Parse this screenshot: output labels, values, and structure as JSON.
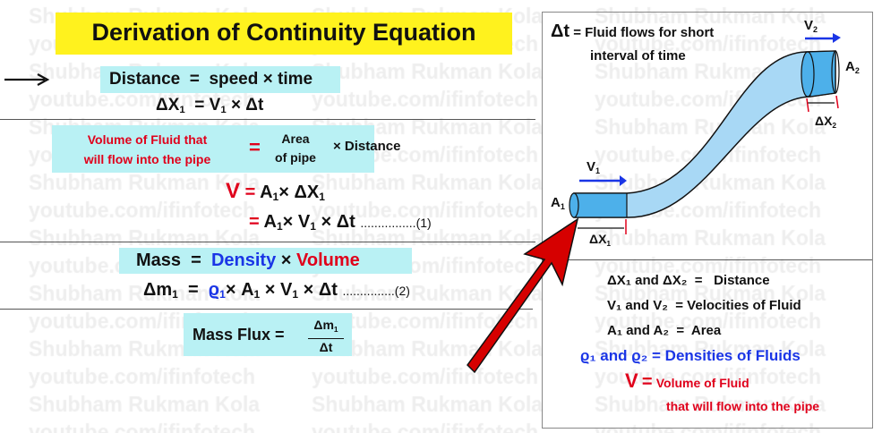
{
  "title": "Derivation of Continuity Equation",
  "watermark": {
    "line1": "Shubham Rukman Kola",
    "line2": "youtube.com/ifinfotech"
  },
  "distance_box": {
    "label": "Distance",
    "eq": "=",
    "rhs": "speed × time"
  },
  "dx_eq": {
    "lhs": "ΔX",
    "sub": "1",
    "rhs": "= V",
    "rhs_sub": "1",
    "tail": "× Δt"
  },
  "volume_box": {
    "lhs_line1": "Volume of Fluid that",
    "lhs_line2": "will flow into the pipe",
    "eq": "=",
    "area_line1": "Area",
    "area_line2": "of pipe",
    "times": "× Distance"
  },
  "v_eq1": {
    "v": "V",
    "eq": "=",
    "a": "A",
    "a_sub": "1",
    "rest": "× ΔX",
    "rest_sub": "1"
  },
  "v_eq2": {
    "eq": "=",
    "a": "A",
    "a_sub": "1",
    "mid": "× V",
    "mid_sub": "1",
    "tail": "× Δt",
    "ref": "................(1)"
  },
  "mass_box": {
    "label": "Mass",
    "eq": "=",
    "density": "Density",
    "times": "×",
    "volume": "Volume"
  },
  "dm_eq": {
    "lhs": "Δm",
    "lhs_sub": "1",
    "eq": "=",
    "rho": "ϱ",
    "rho_sub": "1",
    "a": "× A",
    "a_sub": "1",
    "v": "× V",
    "v_sub": "1",
    "tail": "× Δt",
    "ref": "...............(2)"
  },
  "flux_box": {
    "label": "Mass Flux =",
    "num": "Δm",
    "num_sub": "1",
    "den": "Δt"
  },
  "panel": {
    "dt_label": "Δt",
    "dt_def_line1": "= Fluid flows for short",
    "dt_def_line2": "interval of time",
    "v1": "V",
    "v1_sub": "1",
    "v2": "V",
    "v2_sub": "2",
    "a1": "A",
    "a1_sub": "1",
    "a2": "A",
    "a2_sub": "2",
    "dx1": "ΔX",
    "dx1_sub": "1",
    "dx2": "ΔX",
    "dx2_sub": "2",
    "legend": [
      {
        "lhs": "ΔX₁ and ΔX₂",
        "eq": "=",
        "rhs": "Distance"
      },
      {
        "lhs": "V₁ and V₂",
        "eq": "=",
        "rhs": "Velocities of Fluid"
      },
      {
        "lhs": "A₁ and A₂",
        "eq": "=",
        "rhs": "Area"
      },
      {
        "lhs": "ϱ₁ and ϱ₂",
        "eq": "=",
        "rhs": "Densities of Fluids"
      },
      {
        "lhs": "V",
        "eq": "=",
        "rhs": "Volume of Fluid",
        "rhs2": "that will flow into the pipe"
      }
    ]
  },
  "colors": {
    "title_bg": "#fff21e",
    "box_bg": "#b9f1f4",
    "red": "#e0001b",
    "blue": "#1a35e6",
    "pipe": "#a8d8f5",
    "pipe_section": "#4db0ea",
    "pointer": "#d60000"
  }
}
